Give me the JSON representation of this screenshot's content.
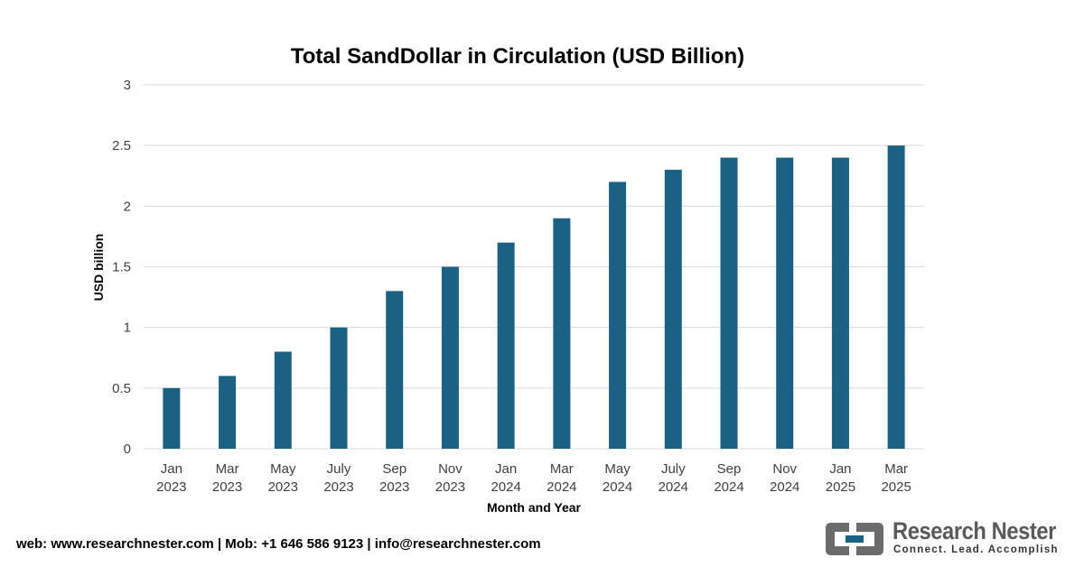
{
  "chart_data": {
    "type": "bar",
    "title": "Total SandDollar in Circulation (USD Billion)",
    "xlabel": "Month and Year",
    "ylabel": "USD billion",
    "categories": [
      [
        "Jan",
        "2023"
      ],
      [
        "Mar",
        "2023"
      ],
      [
        "May",
        "2023"
      ],
      [
        "July",
        "2023"
      ],
      [
        "Sep",
        "2023"
      ],
      [
        "Nov",
        "2023"
      ],
      [
        "Jan",
        "2024"
      ],
      [
        "Mar",
        "2024"
      ],
      [
        "May",
        "2024"
      ],
      [
        "July",
        "2024"
      ],
      [
        "Sep",
        "2024"
      ],
      [
        "Nov",
        "2024"
      ],
      [
        "Jan",
        "2025"
      ],
      [
        "Mar",
        "2025"
      ]
    ],
    "values": [
      0.5,
      0.6,
      0.8,
      1.0,
      1.3,
      1.5,
      1.7,
      1.9,
      2.2,
      2.3,
      2.4,
      2.4,
      2.4,
      2.5
    ],
    "ylim": [
      0,
      3
    ],
    "yticks": [
      "0",
      "0.5",
      "1",
      "1.5",
      "2",
      "2.5",
      "3"
    ],
    "ytick_values": [
      0,
      0.5,
      1,
      1.5,
      2,
      2.5,
      3
    ],
    "grid": true,
    "bar_color": "#1a6184",
    "grid_color": "#d9d9d9"
  },
  "footer": {
    "contact": "web: www.researchnester.com | Mob: +1 646 586 9123 | info@researchnester.com"
  },
  "brand": {
    "name": "Research Nester",
    "tagline": "Connect. Lead. Accomplish",
    "logo_icon": "research-nester-logo-icon",
    "logo_color": "#6b6b6b",
    "logo_accent": "#1a6184"
  }
}
